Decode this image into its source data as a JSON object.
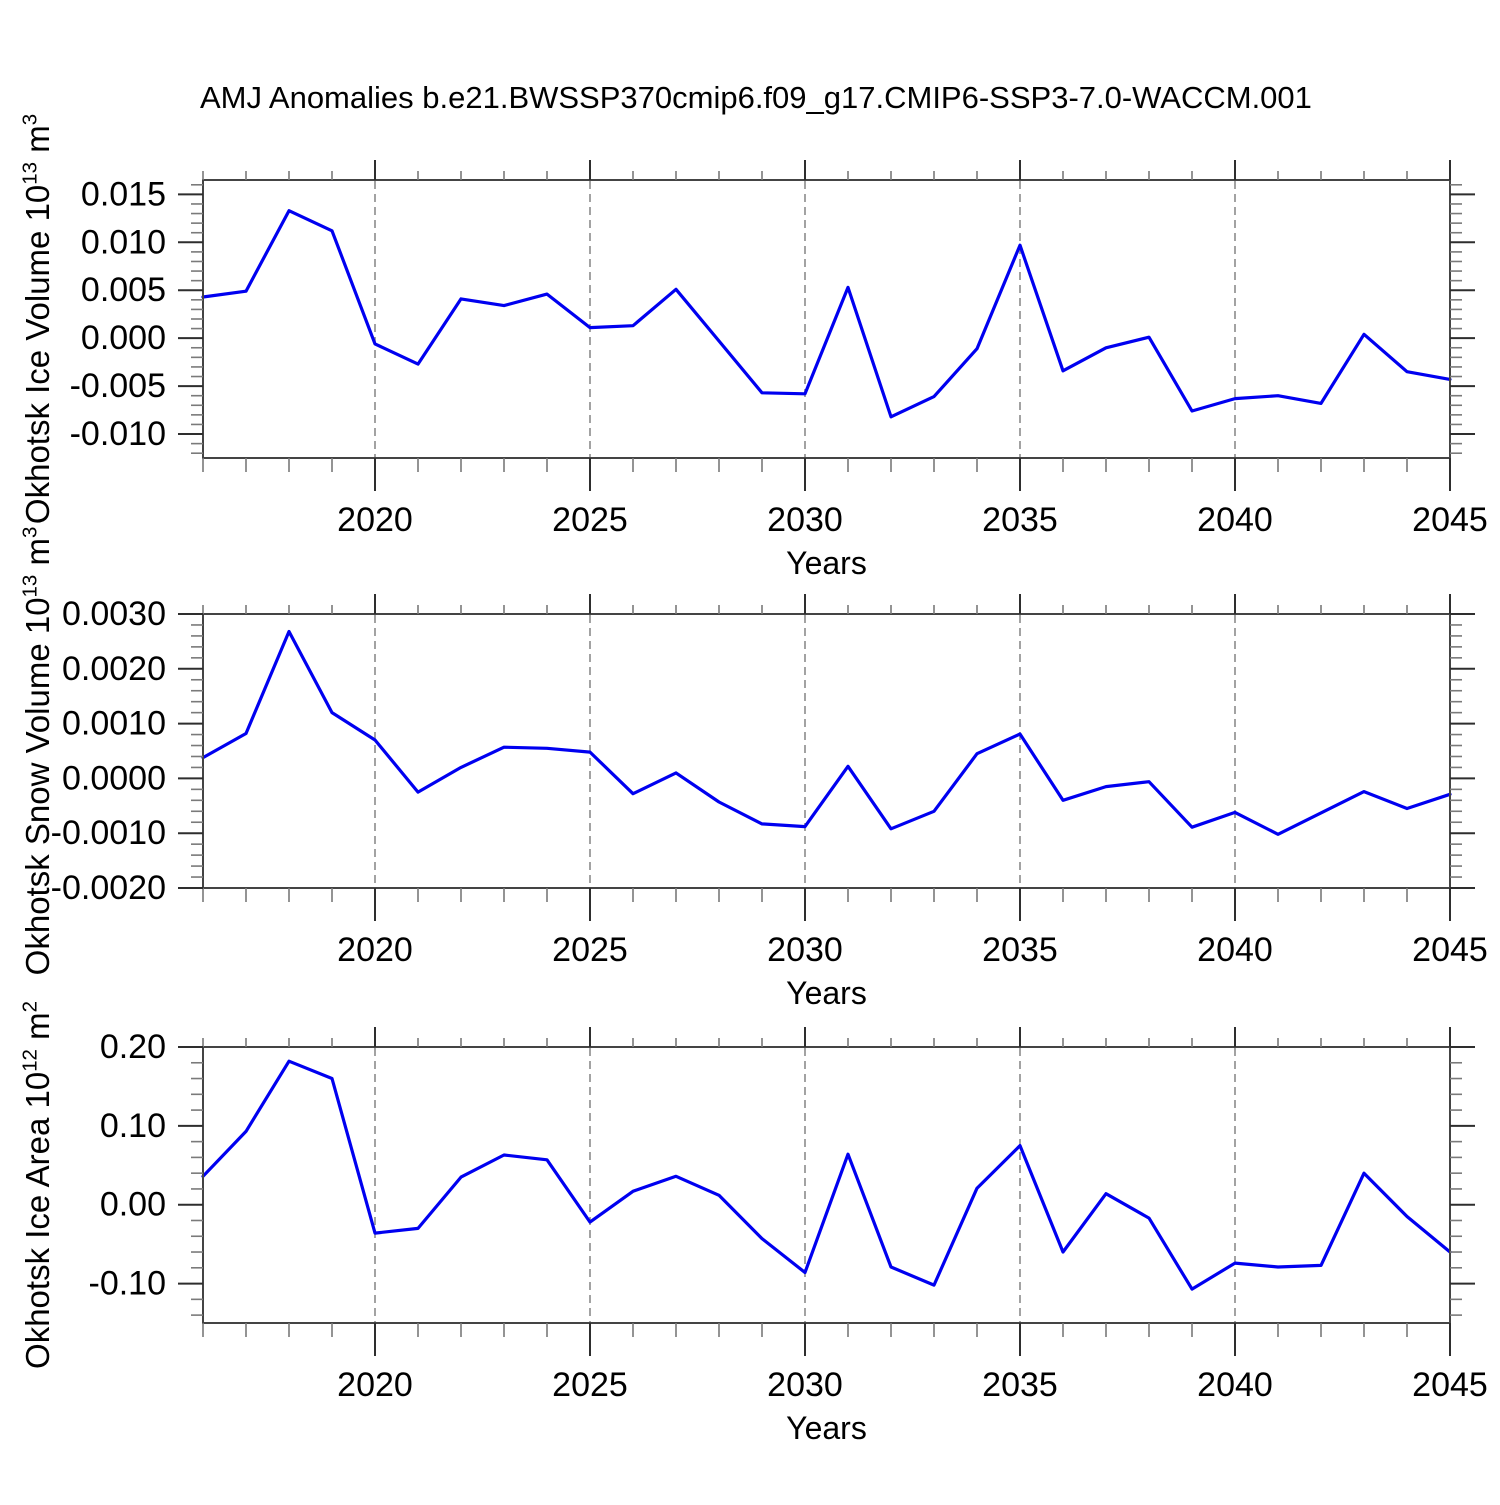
{
  "title": "AMJ Anomalies b.e21.BWSSP370cmip6.f09_g17.CMIP6-SSP3-7.0-WACCM.001",
  "colors": {
    "line": "#0000f0",
    "grid": "#8c8c8c",
    "axis": "#444444",
    "tick_major": "#2e2e2e",
    "tick_minor": "#7a7a7a",
    "text": "#000000"
  },
  "chart_data": [
    {
      "id": "ice-volume",
      "type": "line",
      "ylabel": "Okhotsk Ice Volume 10^13 m^3",
      "ylabel_parts": {
        "prefix": "Okhotsk Ice Volume 10",
        "exponent": "13",
        "unit": " m",
        "unit_exponent": "3"
      },
      "xlabel": "Years",
      "x": [
        2016,
        2017,
        2018,
        2019,
        2020,
        2021,
        2022,
        2023,
        2024,
        2025,
        2026,
        2027,
        2028,
        2029,
        2030,
        2031,
        2032,
        2033,
        2034,
        2035,
        2036,
        2037,
        2038,
        2039,
        2040,
        2041,
        2042,
        2043,
        2044,
        2045
      ],
      "values": [
        0.0043,
        0.0049,
        0.0133,
        0.0112,
        -0.0006,
        -0.0027,
        0.0041,
        0.0034,
        0.0046,
        0.0011,
        0.0013,
        0.0051,
        -0.0003,
        -0.0057,
        -0.0058,
        0.0053,
        -0.0082,
        -0.0061,
        -0.0011,
        0.0097,
        -0.0034,
        -0.001,
        0.0001,
        -0.0076,
        -0.0063,
        -0.006,
        -0.0068,
        0.0004,
        -0.0035,
        -0.0043
      ],
      "xlim": [
        2016,
        2045
      ],
      "ylim": [
        -0.0125,
        0.0165
      ],
      "yticks": {
        "values": [
          0.015,
          0.01,
          0.005,
          0.0,
          -0.005,
          -0.01
        ],
        "labels": [
          "0.015",
          "0.010",
          "0.005",
          "0.000",
          "-0.005",
          "-0.010"
        ]
      },
      "y_minor_step": 0.001,
      "xticks": {
        "values": [
          2020,
          2025,
          2030,
          2035,
          2040,
          2045
        ],
        "labels": [
          "2020",
          "2025",
          "2030",
          "2035",
          "2040",
          "2045"
        ]
      },
      "x_minor_step": 1,
      "gridlines_x": [
        2020,
        2025,
        2030,
        2035,
        2040
      ],
      "grid": "vertical-dashed",
      "legend": null
    },
    {
      "id": "snow-volume",
      "type": "line",
      "ylabel": "Okhotsk Snow Volume 10^13 m^3",
      "ylabel_parts": {
        "prefix": "Okhotsk Snow Volume 10",
        "exponent": "13",
        "unit": " m",
        "unit_exponent": "3"
      },
      "xlabel": "Years",
      "x": [
        2016,
        2017,
        2018,
        2019,
        2020,
        2021,
        2022,
        2023,
        2024,
        2025,
        2026,
        2027,
        2028,
        2029,
        2030,
        2031,
        2032,
        2033,
        2034,
        2035,
        2036,
        2037,
        2038,
        2039,
        2040,
        2041,
        2042,
        2043,
        2044,
        2045
      ],
      "values": [
        0.00038,
        0.00082,
        0.00268,
        0.0012,
        0.0007,
        -0.00025,
        0.0002,
        0.00057,
        0.00055,
        0.00048,
        -0.00028,
        0.0001,
        -0.00043,
        -0.00083,
        -0.00088,
        0.00022,
        -0.00092,
        -0.0006,
        0.00045,
        0.00081,
        -0.0004,
        -0.00015,
        -6e-05,
        -0.00089,
        -0.00062,
        -0.00102,
        -0.00063,
        -0.00024,
        -0.00055,
        -0.00029
      ],
      "xlim": [
        2016,
        2045
      ],
      "ylim": [
        -0.002,
        0.003
      ],
      "yticks": {
        "values": [
          0.003,
          0.002,
          0.001,
          0.0,
          -0.001,
          -0.002
        ],
        "labels": [
          "0.0030",
          "0.0020",
          "0.0010",
          "0.0000",
          "-0.0010",
          "-0.0020"
        ]
      },
      "y_minor_step": 0.0002,
      "xticks": {
        "values": [
          2020,
          2025,
          2030,
          2035,
          2040,
          2045
        ],
        "labels": [
          "2020",
          "2025",
          "2030",
          "2035",
          "2040",
          "2045"
        ]
      },
      "x_minor_step": 1,
      "gridlines_x": [
        2020,
        2025,
        2030,
        2035,
        2040
      ],
      "grid": "vertical-dashed",
      "legend": null
    },
    {
      "id": "ice-area",
      "type": "line",
      "ylabel": "Okhotsk Ice Area 10^12 m^2",
      "ylabel_parts": {
        "prefix": "Okhotsk Ice Area 10",
        "exponent": "12",
        "unit": " m",
        "unit_exponent": "2"
      },
      "xlabel": "Years",
      "x": [
        2016,
        2017,
        2018,
        2019,
        2020,
        2021,
        2022,
        2023,
        2024,
        2025,
        2026,
        2027,
        2028,
        2029,
        2030,
        2031,
        2032,
        2033,
        2034,
        2035,
        2036,
        2037,
        2038,
        2039,
        2040,
        2041,
        2042,
        2043,
        2044,
        2045
      ],
      "values": [
        0.036,
        0.093,
        0.182,
        0.16,
        -0.036,
        -0.03,
        0.035,
        0.063,
        0.057,
        -0.022,
        0.017,
        0.036,
        0.012,
        -0.043,
        -0.086,
        0.064,
        -0.079,
        -0.102,
        0.021,
        0.075,
        -0.06,
        0.014,
        -0.017,
        -0.107,
        -0.074,
        -0.079,
        -0.077,
        0.04,
        -0.015,
        -0.06
      ],
      "xlim": [
        2016,
        2045
      ],
      "ylim": [
        -0.15,
        0.2
      ],
      "yticks": {
        "values": [
          0.2,
          0.1,
          0.0,
          -0.1
        ],
        "labels": [
          "0.20",
          "0.10",
          "0.00",
          "-0.10"
        ]
      },
      "y_minor_step": 0.02,
      "xticks": {
        "values": [
          2020,
          2025,
          2030,
          2035,
          2040,
          2045
        ],
        "labels": [
          "2020",
          "2025",
          "2030",
          "2035",
          "2040",
          "2045"
        ]
      },
      "x_minor_step": 1,
      "gridlines_x": [
        2020,
        2025,
        2030,
        2035,
        2040
      ],
      "grid": "vertical-dashed",
      "legend": null
    }
  ]
}
